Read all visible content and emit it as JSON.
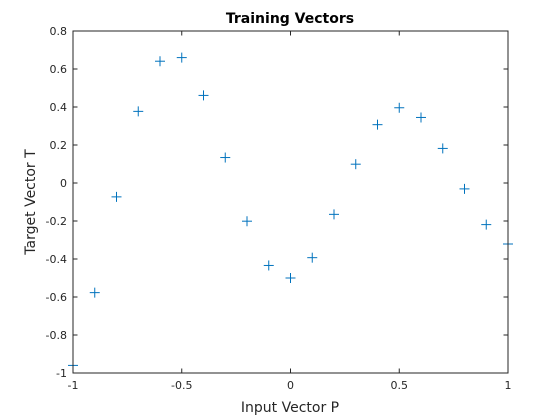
{
  "chart_data": {
    "type": "scatter",
    "title": "Training Vectors",
    "xlabel": "Input Vector P",
    "ylabel": "Target Vector T",
    "xlim": [
      -1,
      1
    ],
    "ylim": [
      -1,
      0.8
    ],
    "xticks": [
      -1,
      -0.5,
      0,
      0.5,
      1
    ],
    "xtick_labels": [
      "-1",
      "-0.5",
      "0",
      "0.5",
      "1"
    ],
    "yticks": [
      -1,
      -0.8,
      -0.6,
      -0.4,
      -0.2,
      0,
      0.2,
      0.4,
      0.6,
      0.8
    ],
    "ytick_labels": [
      "-1",
      "-0.8",
      "-0.6",
      "-0.4",
      "-0.2",
      "0",
      "0.2",
      "0.4",
      "0.6",
      "0.8"
    ],
    "grid": false,
    "box": true,
    "marker": "+",
    "color": "#0072BD",
    "series": [
      {
        "x": [
          -1,
          -0.9,
          -0.8,
          -0.7,
          -0.6,
          -0.5,
          -0.4,
          -0.3,
          -0.2,
          -0.1,
          0,
          0.1,
          0.2,
          0.3,
          0.4,
          0.5,
          0.6,
          0.7,
          0.8,
          0.9,
          1
        ],
        "y": [
          -0.96,
          -0.577,
          -0.073,
          0.377,
          0.641,
          0.66,
          0.461,
          0.134,
          -0.201,
          -0.434,
          -0.5,
          -0.393,
          -0.165,
          0.099,
          0.307,
          0.396,
          0.345,
          0.182,
          -0.031,
          -0.219,
          -0.321
        ]
      }
    ]
  }
}
